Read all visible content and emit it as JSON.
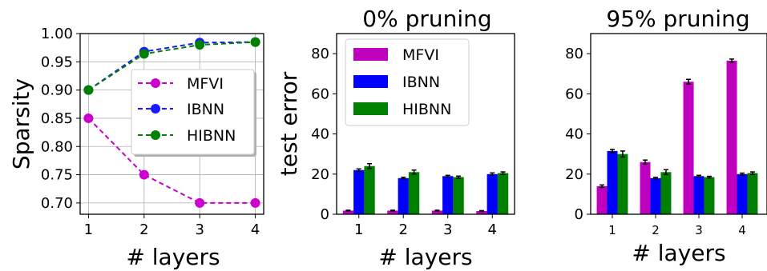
{
  "chart_data": [
    {
      "type": "line",
      "title": "",
      "xlabel": "# layers",
      "ylabel": "Sparsity",
      "x": [
        1,
        2,
        3,
        4
      ],
      "xticks": [
        "1",
        "2",
        "3",
        "4"
      ],
      "ylim": [
        0.68,
        1.0
      ],
      "yticks": [
        "0.70",
        "0.75",
        "0.80",
        "0.85",
        "0.90",
        "0.95",
        "1.00"
      ],
      "grid": true,
      "legend": "center-right",
      "series": [
        {
          "name": "MFVI",
          "color": "#cc00cc",
          "values": [
            0.85,
            0.75,
            0.7,
            0.7
          ]
        },
        {
          "name": "IBNN",
          "color": "#1a1aff",
          "values": [
            0.9,
            0.968,
            0.984,
            0.985
          ]
        },
        {
          "name": "HIBNN",
          "color": "#008000",
          "values": [
            0.9,
            0.964,
            0.98,
            0.985
          ]
        }
      ]
    },
    {
      "type": "bar",
      "title": "0% pruning",
      "xlabel": "# layers",
      "ylabel": "test error",
      "categories": [
        "1",
        "2",
        "3",
        "4"
      ],
      "ylim": [
        0,
        90
      ],
      "yticks": [
        "0",
        "20",
        "40",
        "60",
        "80"
      ],
      "grid": false,
      "legend": "top-left",
      "series": [
        {
          "name": "MFVI",
          "color": "#bf00bf",
          "values": [
            1.8,
            1.8,
            1.8,
            1.6
          ],
          "errors": [
            0.2,
            0.2,
            0.2,
            0.2
          ]
        },
        {
          "name": "IBNN",
          "color": "#0000ff",
          "values": [
            22.0,
            18.0,
            19.0,
            20.0
          ],
          "errors": [
            0.6,
            0.4,
            0.4,
            0.6
          ]
        },
        {
          "name": "HIBNN",
          "color": "#008000",
          "values": [
            24.0,
            21.0,
            18.5,
            20.5
          ],
          "errors": [
            1.2,
            1.0,
            0.5,
            0.6
          ]
        }
      ]
    },
    {
      "type": "bar",
      "title": "95% pruning",
      "xlabel": "# layers",
      "ylabel": "",
      "categories": [
        "1",
        "2",
        "3",
        "4"
      ],
      "ylim": [
        0,
        90
      ],
      "yticks": [
        "0",
        "20",
        "40",
        "60",
        "80"
      ],
      "grid": false,
      "legend": "none",
      "series": [
        {
          "name": "MFVI",
          "color": "#bf00bf",
          "values": [
            14.0,
            26.0,
            66.0,
            76.5
          ],
          "errors": [
            0.6,
            1.0,
            1.2,
            0.8
          ]
        },
        {
          "name": "IBNN",
          "color": "#0000ff",
          "values": [
            31.5,
            18.0,
            19.0,
            20.0
          ],
          "errors": [
            0.8,
            0.4,
            0.4,
            0.5
          ]
        },
        {
          "name": "HIBNN",
          "color": "#008000",
          "values": [
            30.0,
            21.0,
            18.5,
            20.5
          ],
          "errors": [
            1.5,
            1.2,
            0.4,
            0.6
          ]
        }
      ]
    }
  ]
}
